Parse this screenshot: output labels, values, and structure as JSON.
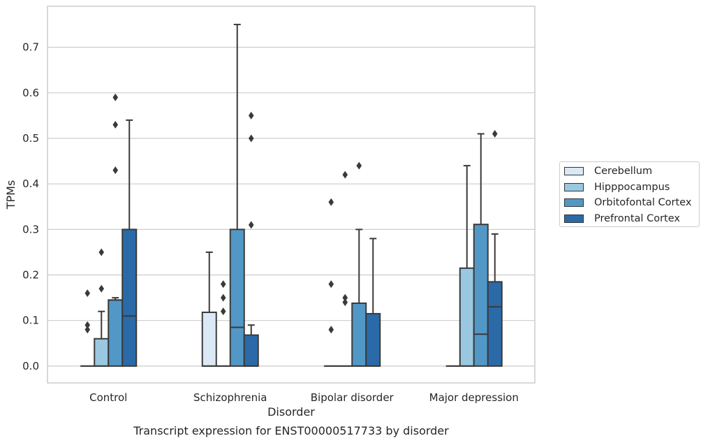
{
  "chart_data": {
    "type": "box",
    "xlabel": "Disorder",
    "ylabel": "TPMs",
    "caption": "Transcript expression for ENST00000517733 by disorder",
    "ylim": [
      -0.037,
      0.79
    ],
    "yticks": [
      "0.0",
      "0.1",
      "0.2",
      "0.3",
      "0.4",
      "0.5",
      "0.6",
      "0.7"
    ],
    "grid": true,
    "legend_position": "right",
    "categories": [
      "Control",
      "Schizophrenia",
      "Bipolar disorder",
      "Major depression"
    ],
    "series": [
      {
        "name": "Cerebellum",
        "color": "#dbe9f6",
        "boxes": [
          {
            "q1": 0,
            "median": 0,
            "q3": 0,
            "whisker_low": 0,
            "whisker_high": 0,
            "outliers": [
              0.08,
              0.09,
              0.16
            ]
          },
          {
            "q1": 0,
            "median": 0,
            "q3": 0.118,
            "whisker_low": 0,
            "whisker_high": 0.25,
            "outliers": []
          },
          {
            "q1": 0,
            "median": 0,
            "q3": 0,
            "whisker_low": 0,
            "whisker_high": 0,
            "outliers": [
              0.08,
              0.18,
              0.36
            ]
          },
          {
            "q1": 0,
            "median": 0,
            "q3": 0,
            "whisker_low": 0,
            "whisker_high": 0,
            "outliers": []
          }
        ]
      },
      {
        "name": "Hipppocampus",
        "color": "#9ac8e0",
        "boxes": [
          {
            "q1": 0,
            "median": 0,
            "q3": 0.06,
            "whisker_low": 0,
            "whisker_high": 0.12,
            "outliers": [
              0.17,
              0.25
            ]
          },
          {
            "q1": 0,
            "median": 0,
            "q3": 0,
            "whisker_low": 0,
            "whisker_high": 0,
            "outliers": [
              0.12,
              0.15,
              0.18
            ]
          },
          {
            "q1": 0,
            "median": 0,
            "q3": 0,
            "whisker_low": 0,
            "whisker_high": 0,
            "outliers": [
              0.14,
              0.15,
              0.42
            ]
          },
          {
            "q1": 0,
            "median": 0,
            "q3": 0.215,
            "whisker_low": 0,
            "whisker_high": 0.44,
            "outliers": []
          }
        ]
      },
      {
        "name": "Orbitofontal Cortex",
        "color": "#5298c6",
        "boxes": [
          {
            "q1": 0,
            "median": 0.145,
            "q3": 0.145,
            "whisker_low": 0,
            "whisker_high": 0.15,
            "outliers": [
              0.43,
              0.53,
              0.59
            ]
          },
          {
            "q1": 0,
            "median": 0.085,
            "q3": 0.3,
            "whisker_low": 0,
            "whisker_high": 0.75,
            "outliers": []
          },
          {
            "q1": 0,
            "median": 0,
            "q3": 0.138,
            "whisker_low": 0,
            "whisker_high": 0.3,
            "outliers": [
              0.44
            ]
          },
          {
            "q1": 0,
            "median": 0.07,
            "q3": 0.311,
            "whisker_low": 0,
            "whisker_high": 0.51,
            "outliers": []
          }
        ]
      },
      {
        "name": "Prefrontal Cortex",
        "color": "#2a6aa8",
        "boxes": [
          {
            "q1": 0,
            "median": 0.11,
            "q3": 0.3,
            "whisker_low": 0,
            "whisker_high": 0.54,
            "outliers": []
          },
          {
            "q1": 0,
            "median": 0,
            "q3": 0.068,
            "whisker_low": 0,
            "whisker_high": 0.09,
            "outliers": [
              0.31,
              0.5,
              0.55
            ]
          },
          {
            "q1": 0,
            "median": 0,
            "q3": 0.115,
            "whisker_low": 0,
            "whisker_high": 0.28,
            "outliers": []
          },
          {
            "q1": 0,
            "median": 0.13,
            "q3": 0.185,
            "whisker_low": 0,
            "whisker_high": 0.29,
            "outliers": [
              0.51
            ]
          }
        ]
      }
    ]
  }
}
